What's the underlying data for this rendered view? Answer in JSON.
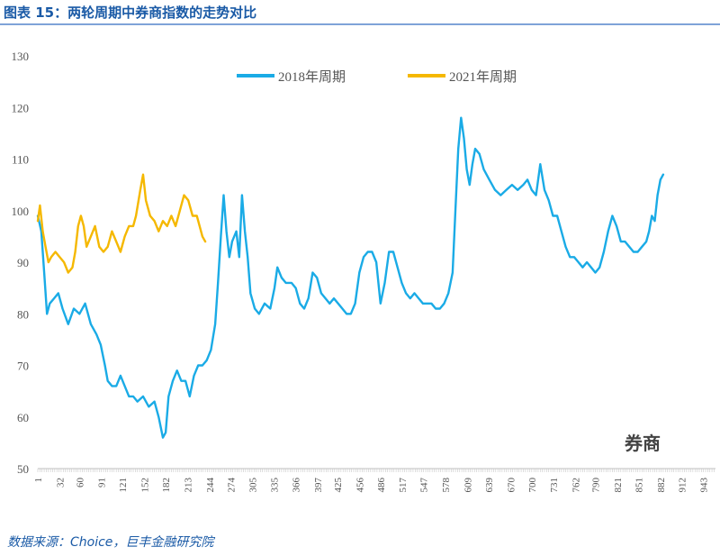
{
  "header": {
    "title": "图表 15：两轮周期中券商指数的走势对比"
  },
  "footer": {
    "source": "数据来源：Choice，巨丰金融研究院"
  },
  "chart_data": {
    "type": "line",
    "title": "",
    "xlabel": "",
    "ylabel": "",
    "xlim": [
      1,
      960
    ],
    "ylim": [
      50,
      130
    ],
    "y_ticks": [
      50,
      60,
      70,
      80,
      90,
      100,
      110,
      120,
      130
    ],
    "x_ticks": [
      1,
      32,
      60,
      91,
      121,
      152,
      182,
      213,
      244,
      274,
      305,
      335,
      366,
      397,
      425,
      456,
      486,
      517,
      547,
      578,
      609,
      639,
      670,
      700,
      731,
      762,
      790,
      821,
      851,
      882,
      912,
      943
    ],
    "legend_position": "top-center",
    "grid": false,
    "annotation": "券商",
    "series": [
      {
        "name": "2018年周期",
        "color": "#1aabe6",
        "points": [
          [
            1,
            99
          ],
          [
            6,
            96
          ],
          [
            10,
            88
          ],
          [
            14,
            80
          ],
          [
            18,
            82
          ],
          [
            24,
            83
          ],
          [
            30,
            84
          ],
          [
            36,
            81
          ],
          [
            44,
            78
          ],
          [
            52,
            81
          ],
          [
            60,
            80
          ],
          [
            68,
            82
          ],
          [
            76,
            78
          ],
          [
            84,
            76
          ],
          [
            90,
            74
          ],
          [
            96,
            70
          ],
          [
            100,
            67
          ],
          [
            106,
            66
          ],
          [
            112,
            66
          ],
          [
            118,
            68
          ],
          [
            124,
            66
          ],
          [
            130,
            64
          ],
          [
            136,
            64
          ],
          [
            142,
            63
          ],
          [
            150,
            64
          ],
          [
            158,
            62
          ],
          [
            166,
            63
          ],
          [
            172,
            60
          ],
          [
            178,
            56
          ],
          [
            182,
            57
          ],
          [
            186,
            64
          ],
          [
            192,
            67
          ],
          [
            198,
            69
          ],
          [
            204,
            67
          ],
          [
            210,
            67
          ],
          [
            216,
            64
          ],
          [
            222,
            68
          ],
          [
            228,
            70
          ],
          [
            234,
            70
          ],
          [
            240,
            71
          ],
          [
            246,
            73
          ],
          [
            252,
            78
          ],
          [
            256,
            86
          ],
          [
            260,
            95
          ],
          [
            264,
            103
          ],
          [
            268,
            96
          ],
          [
            272,
            91
          ],
          [
            276,
            94
          ],
          [
            282,
            96
          ],
          [
            286,
            91
          ],
          [
            290,
            103
          ],
          [
            294,
            96
          ],
          [
            298,
            91
          ],
          [
            302,
            84
          ],
          [
            308,
            81
          ],
          [
            314,
            80
          ],
          [
            322,
            82
          ],
          [
            330,
            81
          ],
          [
            336,
            85
          ],
          [
            340,
            89
          ],
          [
            346,
            87
          ],
          [
            352,
            86
          ],
          [
            360,
            86
          ],
          [
            366,
            85
          ],
          [
            372,
            82
          ],
          [
            378,
            81
          ],
          [
            384,
            83
          ],
          [
            390,
            88
          ],
          [
            396,
            87
          ],
          [
            402,
            84
          ],
          [
            408,
            83
          ],
          [
            414,
            82
          ],
          [
            420,
            83
          ],
          [
            426,
            82
          ],
          [
            432,
            81
          ],
          [
            438,
            80
          ],
          [
            444,
            80
          ],
          [
            450,
            82
          ],
          [
            456,
            88
          ],
          [
            462,
            91
          ],
          [
            468,
            92
          ],
          [
            474,
            92
          ],
          [
            480,
            90
          ],
          [
            486,
            82
          ],
          [
            492,
            86
          ],
          [
            498,
            92
          ],
          [
            504,
            92
          ],
          [
            510,
            89
          ],
          [
            516,
            86
          ],
          [
            522,
            84
          ],
          [
            528,
            83
          ],
          [
            534,
            84
          ],
          [
            540,
            83
          ],
          [
            546,
            82
          ],
          [
            552,
            82
          ],
          [
            558,
            82
          ],
          [
            564,
            81
          ],
          [
            570,
            81
          ],
          [
            576,
            82
          ],
          [
            582,
            84
          ],
          [
            588,
            88
          ],
          [
            592,
            100
          ],
          [
            596,
            112
          ],
          [
            600,
            118
          ],
          [
            604,
            114
          ],
          [
            608,
            108
          ],
          [
            612,
            105
          ],
          [
            616,
            109
          ],
          [
            620,
            112
          ],
          [
            626,
            111
          ],
          [
            632,
            108
          ],
          [
            640,
            106
          ],
          [
            648,
            104
          ],
          [
            656,
            103
          ],
          [
            664,
            104
          ],
          [
            672,
            105
          ],
          [
            680,
            104
          ],
          [
            688,
            105
          ],
          [
            694,
            106
          ],
          [
            700,
            104
          ],
          [
            706,
            103
          ],
          [
            712,
            109
          ],
          [
            718,
            104
          ],
          [
            724,
            102
          ],
          [
            730,
            99
          ],
          [
            736,
            99
          ],
          [
            742,
            96
          ],
          [
            748,
            93
          ],
          [
            754,
            91
          ],
          [
            760,
            91
          ],
          [
            766,
            90
          ],
          [
            772,
            89
          ],
          [
            778,
            90
          ],
          [
            784,
            89
          ],
          [
            790,
            88
          ],
          [
            796,
            89
          ],
          [
            802,
            92
          ],
          [
            808,
            96
          ],
          [
            814,
            99
          ],
          [
            820,
            97
          ],
          [
            826,
            94
          ],
          [
            832,
            94
          ],
          [
            838,
            93
          ],
          [
            844,
            92
          ],
          [
            850,
            92
          ],
          [
            856,
            93
          ],
          [
            862,
            94
          ],
          [
            866,
            96
          ],
          [
            870,
            99
          ],
          [
            874,
            98
          ],
          [
            878,
            103
          ],
          [
            882,
            106
          ],
          [
            886,
            107
          ]
        ]
      },
      {
        "name": "2021年周期",
        "color": "#f5b800",
        "points": [
          [
            1,
            98
          ],
          [
            4,
            101
          ],
          [
            8,
            96
          ],
          [
            12,
            93
          ],
          [
            16,
            90
          ],
          [
            20,
            91
          ],
          [
            26,
            92
          ],
          [
            32,
            91
          ],
          [
            38,
            90
          ],
          [
            44,
            88
          ],
          [
            50,
            89
          ],
          [
            54,
            92
          ],
          [
            58,
            97
          ],
          [
            62,
            99
          ],
          [
            66,
            97
          ],
          [
            70,
            93
          ],
          [
            76,
            95
          ],
          [
            82,
            97
          ],
          [
            88,
            93
          ],
          [
            94,
            92
          ],
          [
            100,
            93
          ],
          [
            106,
            96
          ],
          [
            112,
            94
          ],
          [
            118,
            92
          ],
          [
            124,
            95
          ],
          [
            130,
            97
          ],
          [
            136,
            97
          ],
          [
            140,
            99
          ],
          [
            146,
            104
          ],
          [
            150,
            107
          ],
          [
            154,
            102
          ],
          [
            160,
            99
          ],
          [
            166,
            98
          ],
          [
            172,
            96
          ],
          [
            178,
            98
          ],
          [
            184,
            97
          ],
          [
            190,
            99
          ],
          [
            196,
            97
          ],
          [
            202,
            100
          ],
          [
            208,
            103
          ],
          [
            214,
            102
          ],
          [
            220,
            99
          ],
          [
            226,
            99
          ],
          [
            230,
            97
          ],
          [
            234,
            95
          ],
          [
            238,
            94
          ]
        ]
      }
    ]
  }
}
